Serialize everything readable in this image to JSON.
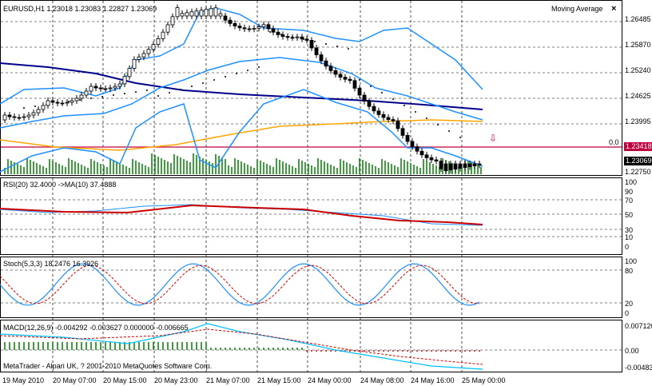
{
  "window": {
    "symbol_header": "EURUSD,H1  1.23018 1.23083 1.22827 1.23069",
    "indicator_list_title": "Moving Average",
    "close_glyph": "×",
    "level_label": "0.0",
    "copyright": "MetaTrader - Alpari UK, ? 2001-2010 MetaQuotes Software Corp."
  },
  "price_scale": [
    "1.26485",
    "1.25870",
    "1.25240",
    "1.24625",
    "1.23995",
    "1.22750"
  ],
  "price_badges": {
    "level_price": "1.23418",
    "current_price": "1.23069"
  },
  "rsi": {
    "label": "RSI(20) 32.4000  ->MA(10) 37.4888",
    "scale": [
      "100",
      "90",
      "70",
      "50",
      "30",
      "10",
      "0"
    ]
  },
  "stoch": {
    "label": "Stoch(5,3,3) 18.2476  16.3926",
    "scale": [
      "100",
      "80",
      "20",
      "0"
    ]
  },
  "macd": {
    "label": "MACD(12,26,9) -0.004292 -0.003627 0.000000 -0.006665",
    "scale": [
      "0.007120",
      "0.00",
      "-0.00483"
    ]
  },
  "time_axis": [
    "19 May 2010",
    "20 May 07:00",
    "20 May 15:00",
    "20 May 23:00",
    "21 May 07:00",
    "21 May 15:00",
    "24 May 00:00",
    "24 May 08:00",
    "24 May 16:00",
    "25 May 00:00"
  ],
  "colors": {
    "bollinger": "#1e90ff",
    "ma_slow": "#00008b",
    "ma_fast": "#ffa500",
    "level_line": "#c0003c",
    "volume": "#008000",
    "rsi_line": "#1e90ff",
    "rsi_ma": "#cc0000",
    "stoch_main": "#1e90ff",
    "stoch_signal": "#cc0000",
    "macd_hist_pos": "#008000",
    "macd_hist_neg": "#cc0000",
    "macd_line": "#00bfff",
    "macd_signal": "#cc0000"
  },
  "icons": {
    "sell_arrow": "arrow-down-icon"
  }
}
